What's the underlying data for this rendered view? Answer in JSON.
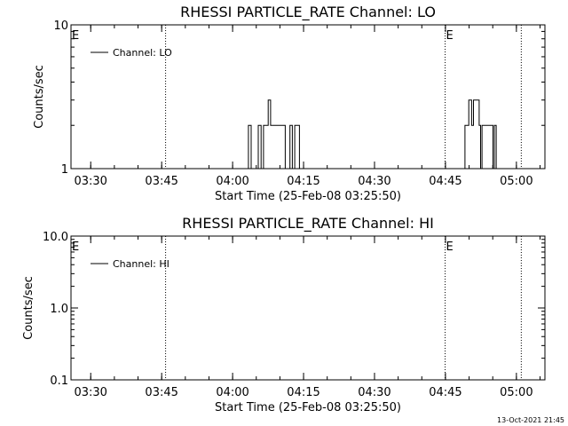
{
  "chart_data": [
    {
      "type": "line",
      "title": "RHESSI PARTICLE_RATE Channel: LO",
      "xlabel": "Start Time (25-Feb-08 03:25:50)",
      "ylabel": "Counts/sec",
      "y_scale": "log",
      "ylim": [
        1,
        10
      ],
      "y_ticks": [
        "1",
        "10"
      ],
      "x_range": [
        "03:25:50",
        "05:06:00"
      ],
      "x_ticks": [
        "03:30",
        "03:45",
        "04:00",
        "04:15",
        "04:30",
        "04:45",
        "05:00"
      ],
      "x_tick_minutes": [
        4.17,
        19.17,
        34.17,
        49.17,
        64.17,
        79.17,
        94.17
      ],
      "legend": "Channel: LO",
      "legend_position": "top-left",
      "vlines_minutes": [
        20.0,
        79.1,
        95.2
      ],
      "event_markers": [
        {
          "label": "E",
          "minute": 0.0
        },
        {
          "label": "E",
          "minute": 79.1
        }
      ],
      "series": [
        {
          "name": "Channel: LO",
          "points": [
            [
              37.5,
              1
            ],
            [
              37.5,
              2
            ],
            [
              38.1,
              2
            ],
            [
              38.1,
              1
            ],
            [
              39.6,
              1
            ],
            [
              39.6,
              2
            ],
            [
              40.2,
              2
            ],
            [
              40.2,
              1
            ],
            [
              40.7,
              1
            ],
            [
              40.7,
              2
            ],
            [
              41.7,
              2
            ],
            [
              41.7,
              3
            ],
            [
              42.2,
              3
            ],
            [
              42.2,
              2
            ],
            [
              45.3,
              2
            ],
            [
              45.3,
              1
            ],
            [
              46.3,
              1
            ],
            [
              46.3,
              2
            ],
            [
              46.8,
              2
            ],
            [
              46.8,
              1
            ],
            [
              47.3,
              1
            ],
            [
              47.3,
              2
            ],
            [
              48.3,
              2
            ],
            [
              48.3,
              1
            ],
            [
              83.3,
              1
            ],
            [
              83.3,
              2
            ],
            [
              84.1,
              2
            ],
            [
              84.1,
              3
            ],
            [
              84.7,
              3
            ],
            [
              84.7,
              2
            ],
            [
              85.1,
              2
            ],
            [
              85.1,
              3
            ],
            [
              86.3,
              3
            ],
            [
              86.3,
              2
            ],
            [
              86.6,
              2
            ],
            [
              86.6,
              1
            ],
            [
              86.9,
              1
            ],
            [
              86.9,
              2
            ],
            [
              89.2,
              2
            ],
            [
              89.2,
              1
            ],
            [
              89.5,
              1
            ],
            [
              89.5,
              2
            ],
            [
              89.9,
              2
            ],
            [
              89.9,
              1
            ]
          ]
        }
      ]
    },
    {
      "type": "line",
      "title": "RHESSI PARTICLE_RATE Channel: HI",
      "xlabel": "Start Time (25-Feb-08 03:25:50)",
      "ylabel": "Counts/sec",
      "y_scale": "log",
      "ylim": [
        0.1,
        10
      ],
      "y_ticks": [
        "0.1",
        "1.0",
        "10.0"
      ],
      "x_range": [
        "03:25:50",
        "05:06:00"
      ],
      "x_ticks": [
        "03:30",
        "03:45",
        "04:00",
        "04:15",
        "04:30",
        "04:45",
        "05:00"
      ],
      "x_tick_minutes": [
        4.17,
        19.17,
        34.17,
        49.17,
        64.17,
        79.17,
        94.17
      ],
      "legend": "Channel: HI",
      "legend_position": "top-left",
      "vlines_minutes": [
        20.0,
        79.1,
        95.2
      ],
      "event_markers": [
        {
          "label": "E",
          "minute": 0.0
        },
        {
          "label": "E",
          "minute": 79.1
        }
      ],
      "series": [
        {
          "name": "Channel: HI",
          "points": []
        }
      ]
    }
  ],
  "footer": {
    "timestamp": "13-Oct-2021 21:45"
  }
}
